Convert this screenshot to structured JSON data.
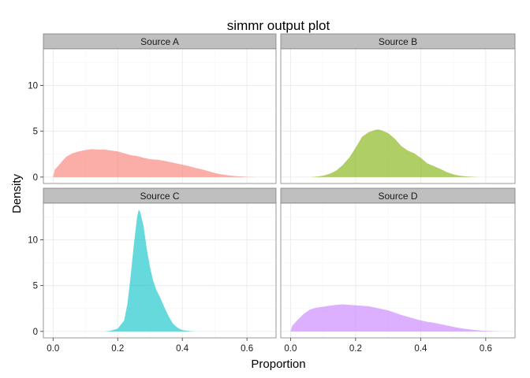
{
  "chart_data": {
    "type": "area",
    "title": "simmr output plot",
    "xlabel": "Proportion",
    "ylabel": "Density",
    "xlim": [
      -0.03,
      0.69
    ],
    "ylim": [
      -0.7,
      14.0
    ],
    "x_ticks": [
      0.0,
      0.2,
      0.4,
      0.6
    ],
    "x_tick_labels": [
      "0.0",
      "0.2",
      "0.4",
      "0.6"
    ],
    "y_ticks": [
      0,
      5,
      10
    ],
    "y_tick_labels": [
      "0",
      "5",
      "10"
    ],
    "grid": true,
    "legend": "none",
    "facets": [
      "Source A",
      "Source B",
      "Source C",
      "Source D"
    ],
    "series": [
      {
        "name": "Source A",
        "color": "#F8766D",
        "x": [
          0.0,
          0.005,
          0.02,
          0.04,
          0.06,
          0.08,
          0.1,
          0.12,
          0.14,
          0.16,
          0.18,
          0.2,
          0.22,
          0.24,
          0.26,
          0.28,
          0.3,
          0.32,
          0.34,
          0.36,
          0.38,
          0.4,
          0.42,
          0.44,
          0.46,
          0.48,
          0.5,
          0.52,
          0.54,
          0.56,
          0.58,
          0.6,
          0.62,
          0.63
        ],
        "y": [
          0.0,
          0.8,
          1.4,
          2.2,
          2.6,
          2.8,
          2.95,
          3.05,
          3.0,
          3.0,
          2.9,
          2.8,
          2.6,
          2.4,
          2.3,
          2.1,
          1.95,
          1.9,
          1.8,
          1.65,
          1.5,
          1.35,
          1.2,
          1.0,
          0.85,
          0.65,
          0.45,
          0.3,
          0.2,
          0.12,
          0.07,
          0.03,
          0.01,
          0.0
        ]
      },
      {
        "name": "Source B",
        "color": "#7CAE00",
        "x": [
          0.06,
          0.08,
          0.1,
          0.12,
          0.14,
          0.16,
          0.18,
          0.2,
          0.22,
          0.24,
          0.26,
          0.27,
          0.28,
          0.3,
          0.32,
          0.34,
          0.36,
          0.38,
          0.4,
          0.42,
          0.44,
          0.46,
          0.48,
          0.5,
          0.52,
          0.54,
          0.56,
          0.58
        ],
        "y": [
          0.0,
          0.05,
          0.15,
          0.35,
          0.7,
          1.3,
          2.1,
          3.2,
          4.4,
          4.9,
          5.15,
          5.2,
          5.1,
          4.8,
          4.2,
          3.4,
          2.9,
          2.6,
          2.1,
          1.5,
          1.2,
          0.9,
          0.55,
          0.3,
          0.15,
          0.07,
          0.03,
          0.0
        ]
      },
      {
        "name": "Source C",
        "color": "#00BFC4",
        "x": [
          0.16,
          0.18,
          0.2,
          0.22,
          0.23,
          0.24,
          0.25,
          0.26,
          0.265,
          0.27,
          0.28,
          0.29,
          0.3,
          0.31,
          0.32,
          0.33,
          0.34,
          0.35,
          0.36,
          0.37,
          0.38,
          0.39,
          0.4,
          0.42,
          0.44
        ],
        "y": [
          0.0,
          0.1,
          0.3,
          1.2,
          3.0,
          6.0,
          9.5,
          12.5,
          13.3,
          13.0,
          11.5,
          9.0,
          7.0,
          5.5,
          4.5,
          3.8,
          3.0,
          2.2,
          1.5,
          0.9,
          0.55,
          0.3,
          0.15,
          0.05,
          0.0
        ]
      },
      {
        "name": "Source D",
        "color": "#C77CFF",
        "x": [
          0.0,
          0.005,
          0.02,
          0.04,
          0.06,
          0.08,
          0.1,
          0.12,
          0.14,
          0.16,
          0.18,
          0.2,
          0.22,
          0.24,
          0.26,
          0.28,
          0.3,
          0.32,
          0.34,
          0.36,
          0.38,
          0.4,
          0.42,
          0.44,
          0.46,
          0.48,
          0.5,
          0.52,
          0.54,
          0.56,
          0.58,
          0.6,
          0.62,
          0.64,
          0.65
        ],
        "y": [
          0.0,
          0.6,
          1.2,
          1.9,
          2.4,
          2.6,
          2.7,
          2.8,
          2.9,
          2.95,
          2.9,
          2.85,
          2.8,
          2.75,
          2.6,
          2.45,
          2.3,
          2.05,
          1.8,
          1.6,
          1.4,
          1.2,
          1.05,
          0.95,
          0.8,
          0.65,
          0.5,
          0.38,
          0.27,
          0.18,
          0.11,
          0.06,
          0.03,
          0.01,
          0.0
        ]
      }
    ]
  }
}
